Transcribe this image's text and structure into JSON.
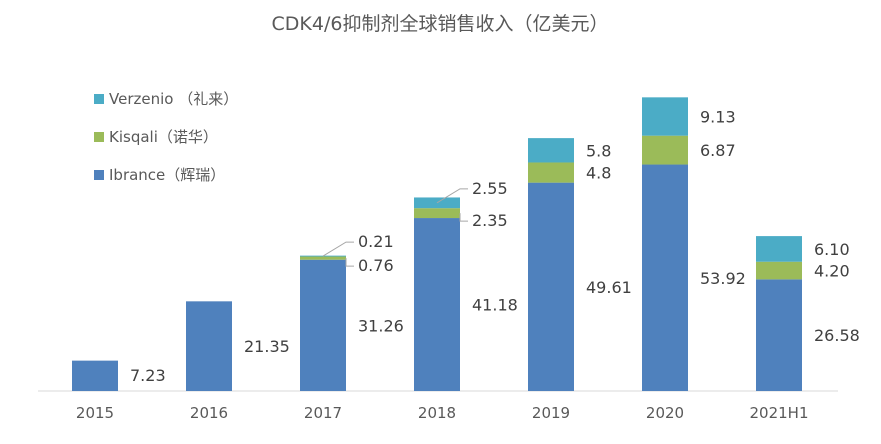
{
  "chart_data": {
    "type": "bar",
    "stacked": true,
    "title": "CDK4/6抑制剂全球销售收入（亿美元）",
    "xlabel": "",
    "ylabel": "",
    "categories": [
      "2015",
      "2016",
      "2017",
      "2018",
      "2019",
      "2020",
      "2021H1"
    ],
    "series": [
      {
        "name": "Ibrance（辉瑞）",
        "color": "#4F81BD",
        "values": [
          7.23,
          21.35,
          31.26,
          41.18,
          49.61,
          53.92,
          26.58
        ],
        "labels": [
          "7.23",
          "21.35",
          "31.26",
          "41.18",
          "49.61",
          "53.92",
          "26.58"
        ]
      },
      {
        "name": "Kisqali（诺华）",
        "color": "#9BBB59",
        "values": [
          0,
          0,
          0.76,
          2.35,
          4.8,
          6.87,
          4.2
        ],
        "labels": [
          "",
          "",
          "0.76",
          "2.35",
          "4.8",
          "6.87",
          "4.20"
        ]
      },
      {
        "name": "Verzenio （礼来）",
        "color": "#4BACC6",
        "values": [
          0,
          0,
          0.21,
          2.55,
          5.8,
          9.13,
          6.1
        ],
        "labels": [
          "",
          "",
          "0.21",
          "2.55",
          "5.8",
          "9.13",
          "6.10"
        ]
      }
    ],
    "ylim": [
      0,
      75
    ],
    "grid": false,
    "legend": "top-left"
  }
}
